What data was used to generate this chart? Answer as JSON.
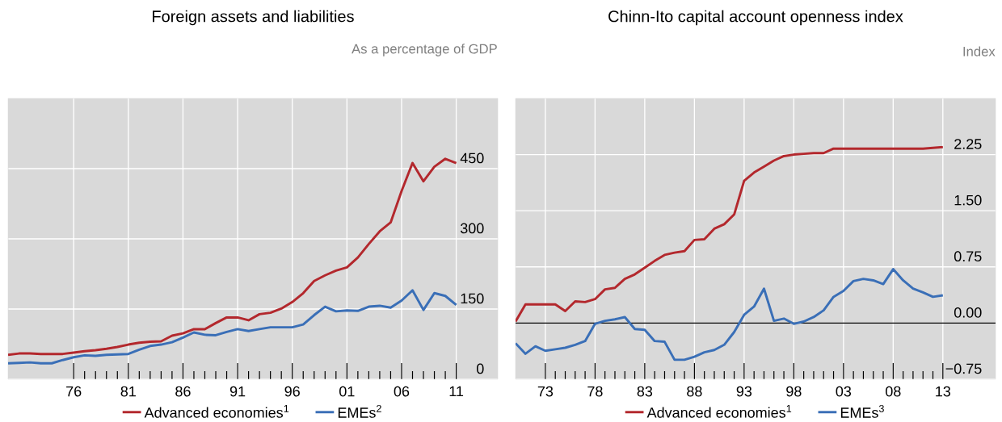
{
  "chart_data": [
    {
      "type": "line",
      "title": "Foreign assets and liabilities",
      "subtitle": "As a percentage of GDP",
      "x": [
        1970,
        1971,
        1972,
        1973,
        1974,
        1975,
        1976,
        1977,
        1978,
        1979,
        1980,
        1981,
        1982,
        1983,
        1984,
        1985,
        1986,
        1987,
        1988,
        1989,
        1990,
        1991,
        1992,
        1993,
        1994,
        1995,
        1996,
        1997,
        1998,
        1999,
        2000,
        2001,
        2002,
        2003,
        2004,
        2005,
        2006,
        2007,
        2008,
        2009,
        2010,
        2011
      ],
      "series": [
        {
          "name": "Advanced economies$^{1}$",
          "color": "#b3282d",
          "values": [
            52,
            55,
            55,
            54,
            54,
            54,
            57,
            60,
            62,
            65,
            69,
            74,
            78,
            80,
            81,
            93,
            98,
            107,
            107,
            120,
            132,
            132,
            126,
            139,
            142,
            151,
            165,
            184,
            210,
            222,
            232,
            239,
            260,
            289,
            316,
            335,
            402,
            462,
            423,
            454,
            471,
            462
          ]
        },
        {
          "name": "EMEs$^{2}$",
          "color": "#3a6fb7",
          "values": [
            34,
            35,
            36,
            34,
            34,
            41,
            47,
            51,
            50,
            52,
            53,
            54,
            63,
            71,
            74,
            79,
            89,
            100,
            95,
            94,
            101,
            107,
            103,
            107,
            111,
            111,
            111,
            117,
            137,
            155,
            145,
            147,
            146,
            155,
            157,
            153,
            168,
            190,
            148,
            184,
            178,
            159
          ]
        }
      ],
      "xlim": [
        1970,
        2014.8
      ],
      "ylim": [
        0,
        600
      ],
      "xticks": [
        {
          "value": 1976,
          "label": "76"
        },
        {
          "value": 1981,
          "label": "81"
        },
        {
          "value": 1986,
          "label": "86"
        },
        {
          "value": 1991,
          "label": "91"
        },
        {
          "value": 1996,
          "label": "96"
        },
        {
          "value": 2001,
          "label": "01"
        },
        {
          "value": 2006,
          "label": "06"
        },
        {
          "value": 2011,
          "label": "11"
        }
      ],
      "yticks": [
        0,
        150,
        300,
        450
      ],
      "grid": true,
      "legend": "bottom"
    },
    {
      "type": "line",
      "title": "Chinn-Ito capital account openness index",
      "subtitle": "Index",
      "x": [
        1970,
        1971,
        1972,
        1973,
        1974,
        1975,
        1976,
        1977,
        1978,
        1979,
        1980,
        1981,
        1982,
        1983,
        1984,
        1985,
        1986,
        1987,
        1988,
        1989,
        1990,
        1991,
        1992,
        1993,
        1994,
        1995,
        1996,
        1997,
        1998,
        1999,
        2000,
        2001,
        2002,
        2003,
        2004,
        2005,
        2006,
        2007,
        2008,
        2009,
        2010,
        2011,
        2012,
        2013
      ],
      "series": [
        {
          "name": "Advanced economies$^{1}$",
          "color": "#b3282d",
          "values": [
            0.02,
            0.25,
            0.25,
            0.25,
            0.25,
            0.16,
            0.29,
            0.28,
            0.32,
            0.45,
            0.47,
            0.59,
            0.65,
            0.74,
            0.83,
            0.91,
            0.94,
            0.96,
            1.11,
            1.12,
            1.26,
            1.32,
            1.45,
            1.9,
            2.01,
            2.09,
            2.17,
            2.23,
            2.25,
            2.26,
            2.27,
            2.27,
            2.33,
            2.33,
            2.33,
            2.33,
            2.33,
            2.33,
            2.33,
            2.33,
            2.33,
            2.33,
            2.34,
            2.35
          ]
        },
        {
          "name": "EMEs$^{3}$",
          "color": "#3a6fb7",
          "values": [
            -0.27,
            -0.41,
            -0.31,
            -0.37,
            -0.35,
            -0.33,
            -0.29,
            -0.24,
            -0.01,
            0.03,
            0.05,
            0.08,
            -0.08,
            -0.09,
            -0.24,
            -0.25,
            -0.49,
            -0.49,
            -0.45,
            -0.39,
            -0.36,
            -0.29,
            -0.12,
            0.11,
            0.22,
            0.46,
            0.03,
            0.06,
            -0.01,
            0.02,
            0.08,
            0.17,
            0.35,
            0.43,
            0.56,
            0.59,
            0.57,
            0.52,
            0.72,
            0.57,
            0.46,
            0.41,
            0.35,
            0.37
          ]
        }
      ],
      "xlim": [
        1970,
        2018.3
      ],
      "ylim": [
        -0.75,
        3.0
      ],
      "xticks": [
        {
          "value": 1973,
          "label": "73"
        },
        {
          "value": 1978,
          "label": "78"
        },
        {
          "value": 1983,
          "label": "83"
        },
        {
          "value": 1988,
          "label": "88"
        },
        {
          "value": 1993,
          "label": "93"
        },
        {
          "value": 1998,
          "label": "98"
        },
        {
          "value": 2003,
          "label": "03"
        },
        {
          "value": 2008,
          "label": "08"
        },
        {
          "value": 2013,
          "label": "13"
        }
      ],
      "yticks": [
        {
          "value": -0.75,
          "label": "−0.75"
        },
        {
          "value": 0,
          "label": "0.00"
        },
        {
          "value": 0.75,
          "label": "0.75"
        },
        {
          "value": 1.5,
          "label": "1.50"
        },
        {
          "value": 2.25,
          "label": "2.25"
        }
      ],
      "ref_lines": [
        {
          "axis": "y",
          "value": 0,
          "color": "#000000"
        }
      ],
      "grid": true,
      "legend": "bottom"
    }
  ]
}
